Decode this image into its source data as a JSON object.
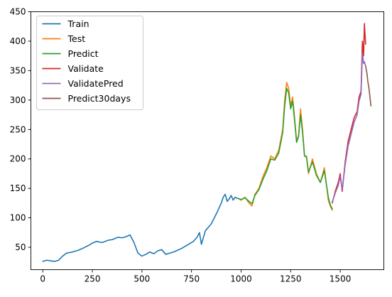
{
  "chart_data": {
    "type": "line",
    "title": "",
    "xlabel": "",
    "ylabel": "",
    "xlim": [
      -60,
      1720
    ],
    "ylim": [
      12,
      450
    ],
    "xticks": [
      0,
      250,
      500,
      750,
      1000,
      1250,
      1500
    ],
    "yticks": [
      50,
      100,
      150,
      200,
      250,
      300,
      350,
      400,
      450
    ],
    "grid": false,
    "legend_position": "upper-left",
    "series": [
      {
        "name": "Train",
        "color": "#1f77b4",
        "x": [
          0,
          20,
          40,
          60,
          80,
          100,
          120,
          150,
          180,
          200,
          230,
          250,
          270,
          300,
          330,
          350,
          380,
          400,
          420,
          440,
          460,
          480,
          500,
          520,
          540,
          560,
          580,
          600,
          620,
          640,
          660,
          680,
          700,
          720,
          740,
          760,
          780,
          790,
          800,
          820,
          850,
          880,
          900,
          910,
          920,
          930,
          940,
          950,
          960,
          970,
          980
        ],
        "y": [
          26,
          28,
          27,
          26,
          28,
          35,
          40,
          42,
          45,
          48,
          53,
          57,
          60,
          58,
          62,
          63,
          67,
          66,
          68,
          71,
          58,
          40,
          35,
          38,
          42,
          39,
          44,
          46,
          38,
          40,
          42,
          45,
          48,
          52,
          56,
          60,
          68,
          75,
          55,
          78,
          90,
          110,
          125,
          135,
          140,
          128,
          132,
          138,
          130,
          135,
          133
        ]
      },
      {
        "name": "Test",
        "color": "#ff7f0e",
        "x": [
          985,
          1000,
          1020,
          1040,
          1055,
          1070,
          1090,
          1110,
          1130,
          1150,
          1170,
          1190,
          1210,
          1220,
          1230,
          1240,
          1250,
          1260,
          1270,
          1280,
          1290,
          1300,
          1310,
          1320,
          1330,
          1340,
          1360,
          1380,
          1400,
          1420,
          1440,
          1450,
          1460
        ],
        "y": [
          133,
          130,
          135,
          125,
          120,
          140,
          150,
          170,
          185,
          205,
          200,
          215,
          250,
          300,
          330,
          320,
          290,
          305,
          270,
          230,
          240,
          285,
          250,
          205,
          205,
          175,
          200,
          175,
          160,
          185,
          130,
          120,
          113
        ]
      },
      {
        "name": "Predict",
        "color": "#2ca02c",
        "x": [
          985,
          1000,
          1020,
          1040,
          1055,
          1070,
          1090,
          1110,
          1130,
          1150,
          1170,
          1190,
          1210,
          1220,
          1230,
          1240,
          1250,
          1260,
          1270,
          1280,
          1290,
          1300,
          1310,
          1320,
          1330,
          1340,
          1360,
          1380,
          1400,
          1420,
          1440,
          1450,
          1460
        ],
        "y": [
          133,
          131,
          134,
          128,
          124,
          138,
          148,
          165,
          180,
          200,
          198,
          210,
          245,
          290,
          320,
          312,
          285,
          298,
          265,
          228,
          238,
          275,
          245,
          205,
          203,
          178,
          195,
          172,
          160,
          180,
          135,
          122,
          115
        ]
      },
      {
        "name": "Validate",
        "color": "#d62728",
        "x": [
          1460,
          1475,
          1490,
          1500,
          1510,
          1525,
          1540,
          1555,
          1570,
          1585,
          1595,
          1605,
          1612,
          1618,
          1622,
          1628
        ],
        "y": [
          125,
          145,
          160,
          175,
          145,
          195,
          230,
          250,
          270,
          280,
          305,
          315,
          400,
          375,
          430,
          395
        ]
      },
      {
        "name": "ValidatePred",
        "color": "#9467bd",
        "x": [
          1460,
          1475,
          1490,
          1500,
          1510,
          1525,
          1540,
          1555,
          1570,
          1585,
          1595,
          1605,
          1612,
          1618,
          1622,
          1628
        ],
        "y": [
          127,
          142,
          155,
          170,
          148,
          190,
          222,
          242,
          262,
          275,
          298,
          310,
          380,
          362,
          365,
          358
        ]
      },
      {
        "name": "Predict30days",
        "color": "#8c564b",
        "x": [
          1628,
          1635,
          1640,
          1645,
          1650,
          1655
        ],
        "y": [
          358,
          345,
          330,
          320,
          305,
          290
        ]
      }
    ]
  }
}
